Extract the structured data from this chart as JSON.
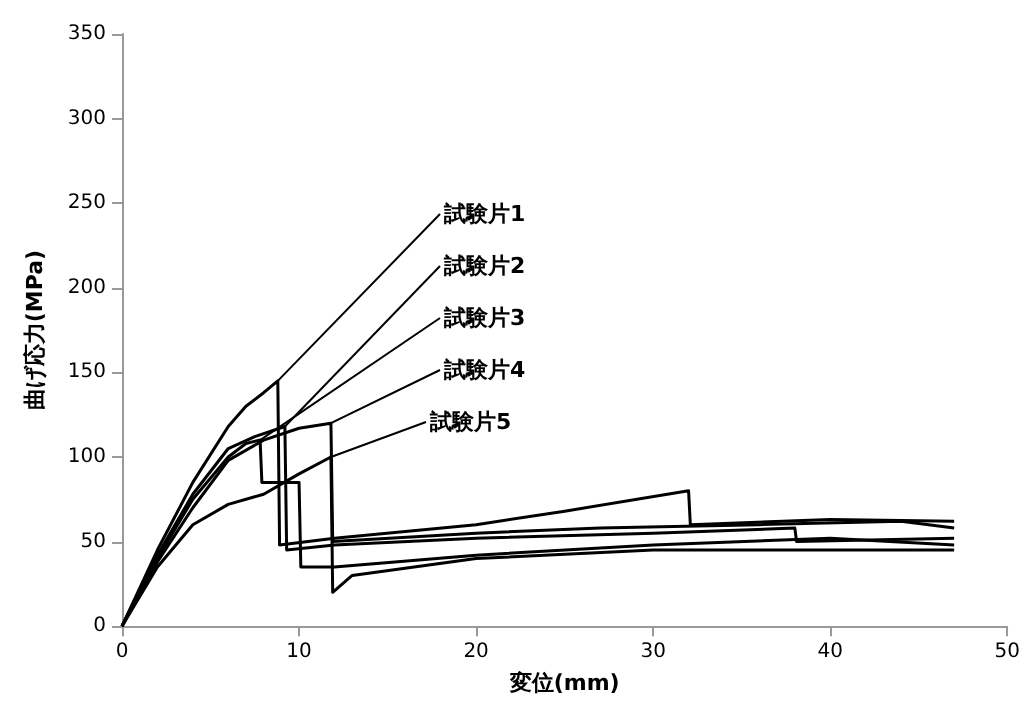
{
  "chart_data": {
    "type": "line",
    "xlabel": "変位(mm)",
    "ylabel": "曲げ応力(MPa)",
    "xlim": [
      0,
      50
    ],
    "xticks": [
      0,
      10,
      20,
      30,
      40,
      50
    ],
    "ylim": [
      0,
      350
    ],
    "yticks": [
      0,
      50,
      100,
      150,
      200,
      250,
      300,
      350
    ],
    "grid": false,
    "legend": false,
    "marker": "none",
    "line_style": "solid",
    "series": [
      {
        "name": "試験片1",
        "color": "#000000",
        "x": [
          0,
          2,
          4,
          6,
          7,
          8,
          8.8,
          8.9,
          12,
          20,
          25,
          32,
          32.1,
          40,
          47
        ],
        "values": [
          0,
          45,
          85,
          118,
          130,
          138,
          145,
          48,
          52,
          60,
          68,
          80,
          60,
          63,
          62
        ]
      },
      {
        "name": "試験片2",
        "color": "#000000",
        "x": [
          0,
          2,
          4,
          6,
          7.5,
          9.2,
          9.3,
          12,
          20,
          30,
          38,
          38.1,
          47
        ],
        "values": [
          0,
          42,
          78,
          105,
          112,
          118,
          45,
          48,
          52,
          55,
          58,
          50,
          52
        ]
      },
      {
        "name": "試験片3",
        "color": "#000000",
        "x": [
          0,
          2,
          4,
          6,
          7,
          7.8,
          7.9,
          10,
          10.1,
          12,
          20,
          30,
          40,
          47
        ],
        "values": [
          0,
          40,
          75,
          100,
          108,
          110,
          85,
          85,
          35,
          35,
          42,
          48,
          52,
          48
        ]
      },
      {
        "name": "試験片4",
        "color": "#000000",
        "x": [
          0,
          2,
          4,
          6,
          8,
          10,
          11.8,
          11.9,
          20,
          27,
          36,
          44,
          47
        ],
        "values": [
          0,
          38,
          70,
          98,
          110,
          117,
          120,
          50,
          55,
          58,
          60,
          62,
          58
        ]
      },
      {
        "name": "試験片5",
        "color": "#000000",
        "x": [
          0,
          2,
          4,
          6,
          8,
          10,
          11.8,
          11.9,
          13,
          20,
          30,
          40,
          47
        ],
        "values": [
          0,
          35,
          60,
          72,
          78,
          90,
          100,
          20,
          30,
          40,
          45,
          45,
          45
        ]
      }
    ]
  }
}
